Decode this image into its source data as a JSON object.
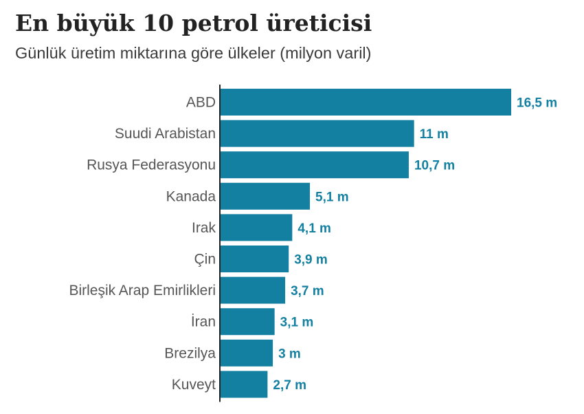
{
  "chart_data": {
    "type": "bar",
    "orientation": "horizontal",
    "title": "En büyük 10 petrol üreticisi",
    "subtitle": "Günlük üretim miktarına göre ülkeler (milyon varil)",
    "xlabel": "",
    "ylabel": "",
    "xlim": [
      0,
      16.5
    ],
    "grid": false,
    "categories": [
      "ABD",
      "Suudi Arabistan",
      "Rusya Federasyonu",
      "Kanada",
      "Irak",
      "Çin",
      "Birleşik Arap Emirlikleri",
      "İran",
      "Brezilya",
      "Kuveyt"
    ],
    "values": [
      16.5,
      11,
      10.7,
      5.1,
      4.1,
      3.9,
      3.7,
      3.1,
      3,
      2.7
    ],
    "value_labels": [
      "16,5 m",
      "11 m",
      "10,7 m",
      "5,1 m",
      "4,1 m",
      "3,9 m",
      "3,7 m",
      "3,1 m",
      "3 m",
      "2,7 m"
    ],
    "colors": {
      "bar": "#1380A1",
      "value_text": "#1380A1",
      "axis": "#222222"
    }
  }
}
